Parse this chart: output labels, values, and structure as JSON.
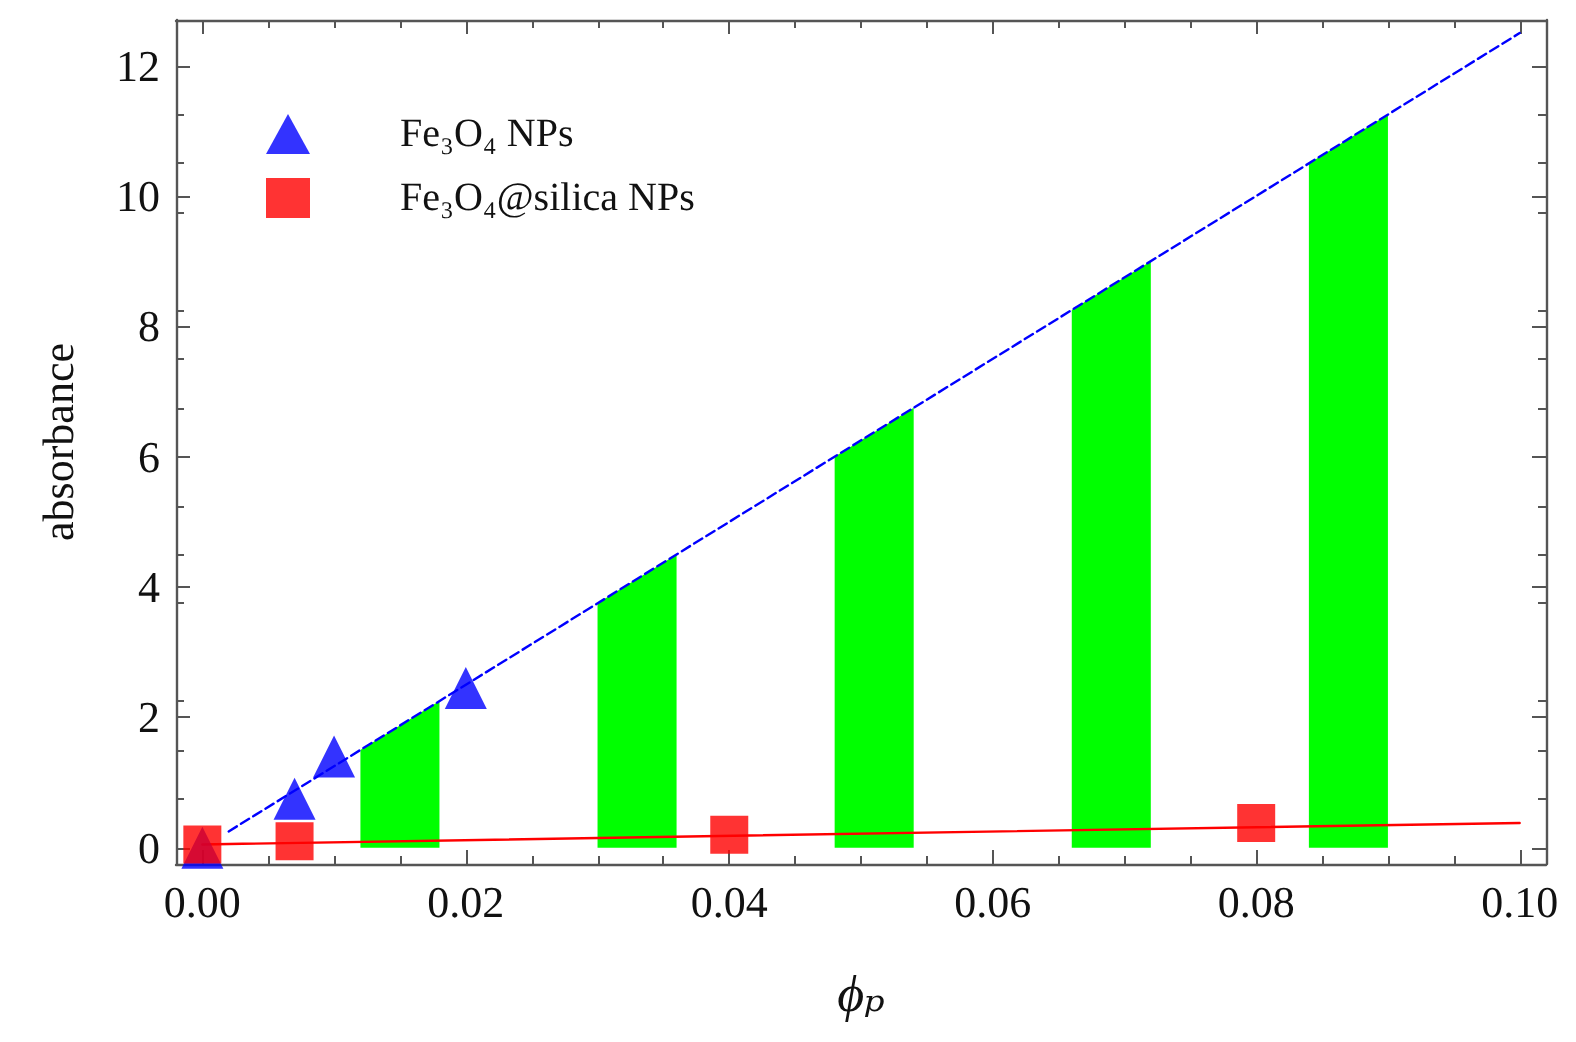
{
  "chart_data": {
    "type": "scatter",
    "xlabel": "ϕₚ",
    "ylabel": "absorbance",
    "xlim": [
      -0.002,
      0.102
    ],
    "ylim": [
      -0.25,
      12.7
    ],
    "xticks": [
      {
        "value": 0,
        "label": "0.00"
      },
      {
        "value": 0.02,
        "label": "0.02"
      },
      {
        "value": 0.04,
        "label": "0.04"
      },
      {
        "value": 0.06,
        "label": "0.06"
      },
      {
        "value": 0.08,
        "label": "0.08"
      },
      {
        "value": 0.1,
        "label": "0.10"
      }
    ],
    "yticks": [
      0,
      2,
      4,
      6,
      8,
      10,
      12
    ],
    "grid": false,
    "legend": "top left",
    "series": [
      {
        "name": "Fe₃O₄ NPs",
        "color": "#0000ff",
        "marker": "triangle",
        "x": [
          0,
          0.007,
          0.01,
          0.02
        ],
        "values": [
          0,
          0.75,
          1.4,
          2.45
        ]
      },
      {
        "name": "Fe₃O₄@silica NPs",
        "color": "#ff0000",
        "marker": "square",
        "x": [
          0,
          0.007,
          0.04,
          0.08
        ],
        "values": [
          0.05,
          0.1,
          0.2,
          0.38
        ]
      },
      {
        "type": "line",
        "color": "#0000ff",
        "line_style": "dashed",
        "marker": "none",
        "x": [
          0.002,
          0.1
        ],
        "values": [
          0.25,
          12.5
        ]
      },
      {
        "type": "line",
        "color": "#ff0000",
        "line_style": "solid",
        "marker": "none",
        "x": [
          0,
          0.1
        ],
        "values": [
          0.05,
          0.38
        ]
      },
      {
        "type": "area",
        "color": "#00ff00",
        "x": [
          0.012,
          0.018
        ],
        "values": [
          1.5,
          2.25
        ]
      },
      {
        "type": "area",
        "color": "#00ff00",
        "x": [
          0.03,
          0.036
        ],
        "values": [
          3.75,
          4.5
        ]
      },
      {
        "type": "area",
        "color": "#00ff00",
        "x": [
          0.048,
          0.054
        ],
        "values": [
          6.0,
          6.75
        ]
      },
      {
        "type": "area",
        "color": "#00ff00",
        "x": [
          0.066,
          0.072
        ],
        "values": [
          8.25,
          9.0
        ]
      },
      {
        "type": "area",
        "color": "#00ff00",
        "x": [
          0.084,
          0.09
        ],
        "values": [
          10.5,
          11.25
        ]
      }
    ]
  }
}
